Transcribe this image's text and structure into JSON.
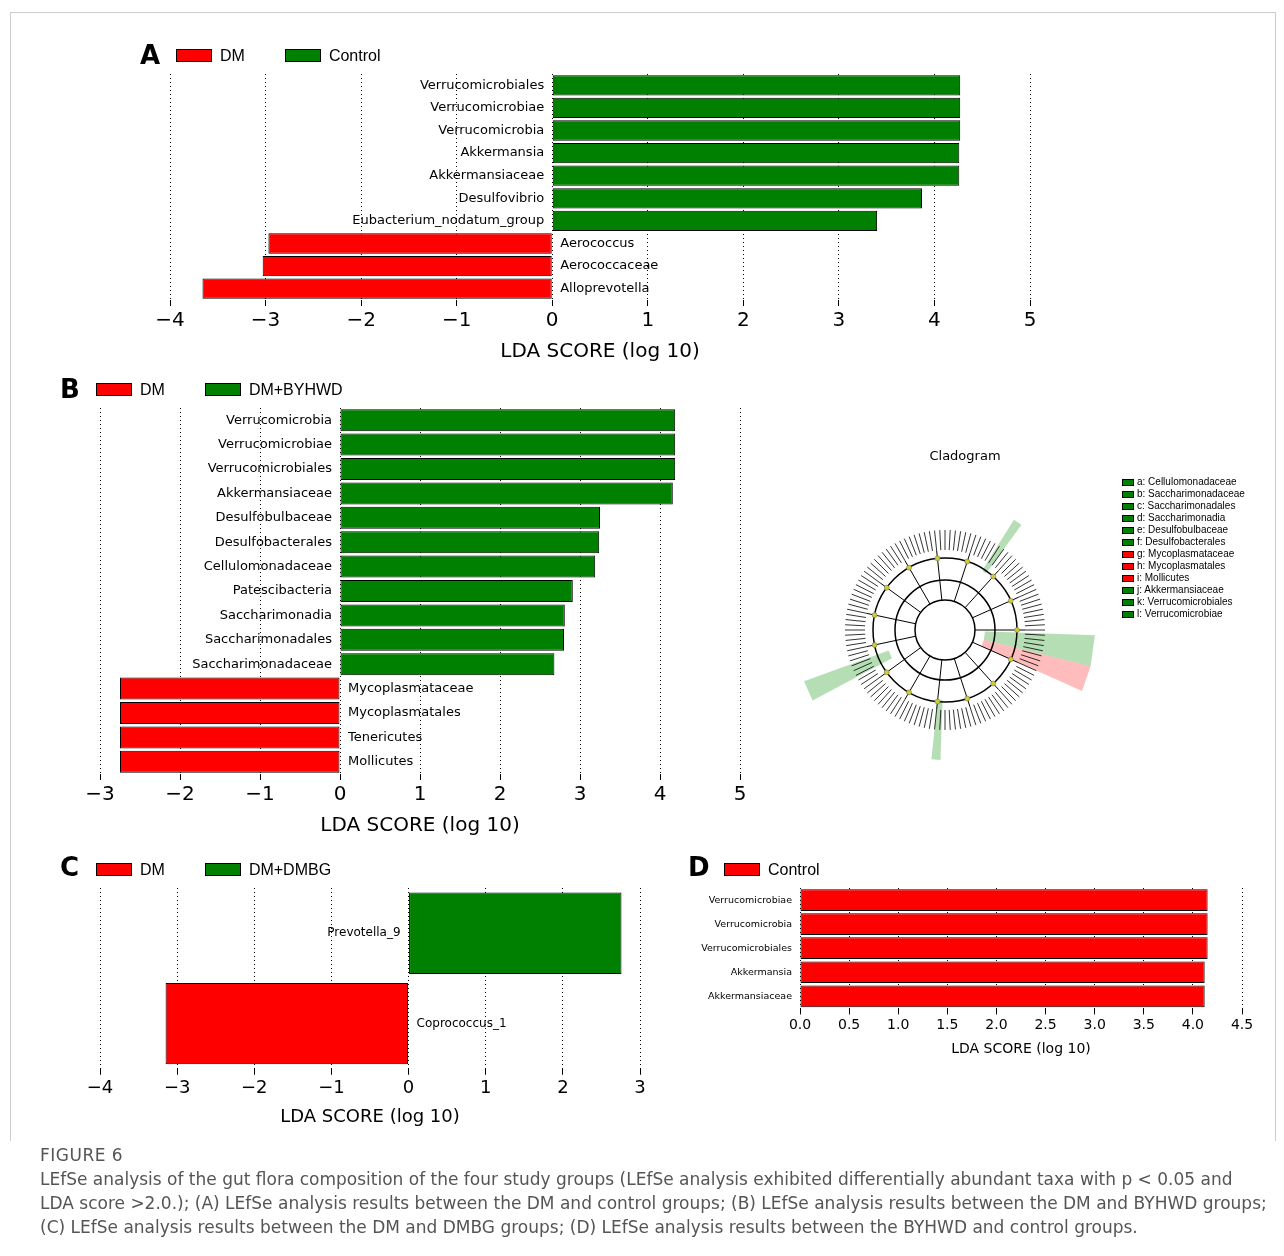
{
  "chart_data": [
    {
      "type": "bar",
      "title": "A",
      "orientation": "horizontal",
      "stacked": true,
      "categories": [
        "Verrucomicrobiales",
        "Verrucomicrobiae",
        "Verrucomicrobia",
        "Akkermansia",
        "Akkermansiaceae",
        "Desulfovibrio",
        "Eubacterium_nodatum_group",
        "Aerococcus",
        "Aerococcaceae",
        "Alloprevotella"
      ],
      "series": [
        {
          "name": "DM",
          "color": "#ff0000",
          "values": [
            null,
            null,
            null,
            null,
            null,
            null,
            null,
            -2.97,
            -3.03,
            -3.66
          ]
        },
        {
          "name": "Control",
          "color": "#008000",
          "values": [
            4.27,
            4.27,
            4.27,
            4.26,
            4.26,
            3.87,
            3.4,
            null,
            null,
            null
          ]
        }
      ],
      "xlabel": "LDA SCORE (log 10)",
      "xlim": [
        -4,
        5
      ],
      "xticks": [
        {
          "value": -4,
          "label": "−4"
        },
        {
          "value": -3,
          "label": "−3"
        },
        {
          "value": -2,
          "label": "−2"
        },
        {
          "value": -1,
          "label": "−1"
        },
        0,
        1,
        2,
        3,
        4,
        5
      ],
      "grid": "x",
      "legend": "top left"
    },
    {
      "type": "bar",
      "title": "B",
      "orientation": "horizontal",
      "stacked": true,
      "categories": [
        "Verrucomicrobia",
        "Verrucomicrobiae",
        "Verrucomicrobiales",
        "Akkermansiaceae",
        "Desulfobulbaceae",
        "Desulfobacterales",
        "Cellulomonadaceae",
        "Patescibacteria",
        "Saccharimonadia",
        "Saccharimonadales",
        "Saccharimonadaceae",
        "Mycoplasmataceae",
        "Mycoplasmatales",
        "Tenericutes",
        "Mollicutes"
      ],
      "series": [
        {
          "name": "DM",
          "color": "#ff0000",
          "values": [
            null,
            null,
            null,
            null,
            null,
            null,
            null,
            null,
            null,
            null,
            null,
            -2.75,
            -2.75,
            -2.75,
            -2.75
          ]
        },
        {
          "name": "DM+BYHWD",
          "color": "#008000",
          "values": [
            4.19,
            4.19,
            4.19,
            4.16,
            3.25,
            3.24,
            3.19,
            2.91,
            2.81,
            2.8,
            2.68,
            null,
            null,
            null,
            null
          ]
        }
      ],
      "xlabel": "LDA SCORE (log 10)",
      "xlim": [
        -3,
        5
      ],
      "xticks": [
        {
          "value": -3,
          "label": "−3"
        },
        {
          "value": -2,
          "label": "−2"
        },
        {
          "value": -1,
          "label": "−1"
        },
        0,
        1,
        2,
        3,
        4,
        5
      ],
      "grid": "x",
      "legend": "top left"
    },
    {
      "type": "other",
      "title": "Cladogram",
      "annotations": [
        "a: Cellulomonadaceae",
        "b: Saccharimonadaceae",
        "c: Saccharimonadales",
        "d: Saccharimonadia",
        "e: Desulfobulbaceae",
        "f: Desulfobacterales",
        "g: Mycoplasmataceae",
        "h: Mycoplasmatales",
        "i: Mollicutes",
        "j: Akkermansiaceae",
        "k: Verrucomicrobiales",
        "l: Verrucomicrobiae"
      ],
      "colors": [
        "#008000",
        "#008000",
        "#008000",
        "#008000",
        "#008000",
        "#008000",
        "#ff0000",
        "#ff0000",
        "#ff0000",
        "#008000",
        "#008000",
        "#008000"
      ]
    },
    {
      "type": "bar",
      "title": "C",
      "orientation": "horizontal",
      "stacked": true,
      "categories": [
        "Prevotella_9",
        "Coprococcus_1"
      ],
      "series": [
        {
          "name": "DM",
          "color": "#ff0000",
          "values": [
            null,
            -3.15
          ]
        },
        {
          "name": "DM+DMBG",
          "color": "#008000",
          "values": [
            2.76,
            null
          ]
        }
      ],
      "xlabel": "LDA SCORE (log 10)",
      "xlim": [
        -4,
        3
      ],
      "xticks": [
        {
          "value": -4,
          "label": "−4"
        },
        {
          "value": -3,
          "label": "−3"
        },
        {
          "value": -2,
          "label": "−2"
        },
        {
          "value": -1,
          "label": "−1"
        },
        0,
        1,
        2,
        3
      ],
      "grid": "x",
      "legend": "top left"
    },
    {
      "type": "bar",
      "title": "D",
      "orientation": "horizontal",
      "stacked": true,
      "categories": [
        "Verrucomicrobiae",
        "Verrucomicrobia",
        "Verrucomicrobiales",
        "Akkermansia",
        "Akkermansiaceae"
      ],
      "series": [
        {
          "name": "Control",
          "color": "#ff0000",
          "values": [
            4.15,
            4.15,
            4.15,
            4.12,
            4.12
          ]
        }
      ],
      "xlabel": "LDA SCORE (log 10)",
      "xlim": [
        0,
        4.5
      ],
      "xticks": [
        {
          "value": 0,
          "label": "0.0"
        },
        {
          "value": 0.5,
          "label": "0.5"
        },
        {
          "value": 1,
          "label": "1.0"
        },
        {
          "value": 1.5,
          "label": "1.5"
        },
        {
          "value": 2,
          "label": "2.0"
        },
        {
          "value": 2.5,
          "label": "2.5"
        },
        {
          "value": 3,
          "label": "3.0"
        },
        {
          "value": 3.5,
          "label": "3.5"
        },
        {
          "value": 4,
          "label": "4.0"
        },
        {
          "value": 4.5,
          "label": "4.5"
        }
      ],
      "grid": "x",
      "legend": "top left",
      "annotations": [
        "FIGURE 6",
        "LEfSe analysis of the gut flora composition of the four study groups (LEfSe analysis exhibited differentially abundant taxa with p < 0.05 and LDA score >2.0.); (A) LEfSe analysis results between the DM and control groups; (B) LEfSe analysis results between the DM and BYHWD groups; (C) LEfSe analysis results between the DM and DMBG groups; (D) LEfSe analysis results between the BYHWD and control groups."
      ]
    }
  ]
}
